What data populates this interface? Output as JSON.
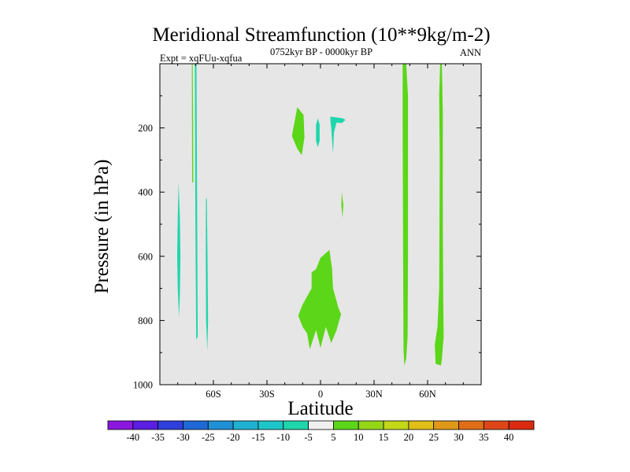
{
  "chart_data": {
    "type": "contour",
    "title": "Meridional Streamfunction (10**9kg/m-2)",
    "left_label": "Expt = xqFUu-xqfua",
    "center_label": "0752kyr BP - 0000kyr BP",
    "right_label": "ANN",
    "xlabel": "Latitude",
    "ylabel": "Pressure (in hPa)",
    "xlim": [
      -90,
      90
    ],
    "ylim": [
      1000,
      0
    ],
    "y_axis_inverted": true,
    "x_ticks": [
      {
        "value": -60,
        "label": "60S"
      },
      {
        "value": -30,
        "label": "30S"
      },
      {
        "value": 0,
        "label": "0"
      },
      {
        "value": 30,
        "label": "30N"
      },
      {
        "value": 60,
        "label": "60N"
      }
    ],
    "y_ticks": [
      {
        "value": 200,
        "label": "200"
      },
      {
        "value": 400,
        "label": "400"
      },
      {
        "value": 600,
        "label": "600"
      },
      {
        "value": 800,
        "label": "800"
      },
      {
        "value": 1000,
        "label": "1000"
      }
    ],
    "plot_background": "#e6e6e6",
    "colorbar": {
      "labels": [
        "-40",
        "-35",
        "-30",
        "-25",
        "-20",
        "-15",
        "-10",
        "-5",
        "5",
        "10",
        "15",
        "20",
        "25",
        "30",
        "35",
        "40"
      ],
      "colors": [
        "#8c17de",
        "#5a1fe0",
        "#2f3fdc",
        "#1f69d6",
        "#1f90d4",
        "#1fb0d2",
        "#1fc6c8",
        "#1fd6ac",
        "#f0f0f0",
        "#5cd618",
        "#96d618",
        "#c2d818",
        "#e0bf18",
        "#e09818",
        "#e06e18",
        "#de4618",
        "#da2a10"
      ]
    },
    "contour_regions": [
      {
        "name": "sh-cyan-band-a",
        "color": "#1fd6ac",
        "points": [
          [
            -79.5,
            370
          ],
          [
            -78.8,
            480
          ],
          [
            -78.5,
            600
          ],
          [
            -78.8,
            720
          ],
          [
            -79.3,
            790
          ],
          [
            -80,
            700
          ],
          [
            -80.3,
            600
          ],
          [
            -80,
            480
          ]
        ]
      },
      {
        "name": "sh-cyan-band-b",
        "color": "#1fd6ac",
        "points": [
          [
            -69.5,
            0
          ],
          [
            -69.3,
            200
          ],
          [
            -69.1,
            500
          ],
          [
            -68.8,
            850
          ],
          [
            -69.6,
            860
          ],
          [
            -70.1,
            500
          ],
          [
            -70.3,
            200
          ],
          [
            -70.4,
            0
          ]
        ]
      },
      {
        "name": "sh-cyan-band-c",
        "color": "#1fd6ac",
        "points": [
          [
            -63.7,
            420
          ],
          [
            -63.3,
            600
          ],
          [
            -63,
            800
          ],
          [
            -63.4,
            895
          ],
          [
            -64.1,
            800
          ],
          [
            -64.3,
            600
          ],
          [
            -64.2,
            420
          ]
        ]
      },
      {
        "name": "sh-green-sliver",
        "color": "#5cd618",
        "points": [
          [
            -71.6,
            0
          ],
          [
            -71.4,
            180
          ],
          [
            -71.3,
            370
          ],
          [
            -71.9,
            370
          ],
          [
            -72,
            180
          ],
          [
            -72.1,
            0
          ]
        ]
      },
      {
        "name": "upper-green-blob",
        "color": "#5cd618",
        "points": [
          [
            -13,
            135
          ],
          [
            -9.5,
            160
          ],
          [
            -9,
            230
          ],
          [
            -10.5,
            285
          ],
          [
            -13,
            265
          ],
          [
            -16,
            225
          ]
        ]
      },
      {
        "name": "upper-cyan-a",
        "color": "#1fd6ac",
        "points": [
          [
            -1.5,
            170
          ],
          [
            -0.5,
            190
          ],
          [
            -0.5,
            240
          ],
          [
            -1.5,
            260
          ],
          [
            -2.5,
            240
          ],
          [
            -2.5,
            190
          ]
        ]
      },
      {
        "name": "upper-cyan-b",
        "color": "#1fd6ac",
        "points": [
          [
            5.5,
            165
          ],
          [
            12.5,
            170
          ],
          [
            14,
            175
          ],
          [
            12,
            185
          ],
          [
            9,
            183
          ],
          [
            7.5,
            215
          ],
          [
            7,
            280
          ],
          [
            6,
            200
          ],
          [
            5.5,
            175
          ]
        ]
      },
      {
        "name": "small-green-mark",
        "color": "#5cd618",
        "points": [
          [
            11.9,
            400
          ],
          [
            12.8,
            440
          ],
          [
            12.3,
            480
          ],
          [
            11.7,
            440
          ]
        ]
      },
      {
        "name": "lower-green-blob",
        "color": "#5cd618",
        "points": [
          [
            5,
            580
          ],
          [
            6.5,
            640
          ],
          [
            7,
            700
          ],
          [
            10,
            760
          ],
          [
            11.5,
            780
          ],
          [
            9,
            830
          ],
          [
            6,
            870
          ],
          [
            3,
            820
          ],
          [
            0,
            885
          ],
          [
            -2.5,
            830
          ],
          [
            -6,
            890
          ],
          [
            -7.5,
            840
          ],
          [
            -10,
            820
          ],
          [
            -12.5,
            785
          ],
          [
            -10,
            750
          ],
          [
            -5,
            700
          ],
          [
            -5,
            650
          ],
          [
            -2.5,
            640
          ],
          [
            0,
            605
          ]
        ]
      },
      {
        "name": "nh-green-band-a",
        "color": "#5cd618",
        "points": [
          [
            46,
            0
          ],
          [
            48,
            0
          ],
          [
            49,
            100
          ],
          [
            49,
            600
          ],
          [
            48.8,
            850
          ],
          [
            48,
            920
          ],
          [
            47,
            940
          ],
          [
            46.5,
            890
          ],
          [
            46.3,
            600
          ],
          [
            46,
            200
          ]
        ]
      },
      {
        "name": "nh-green-band-b",
        "color": "#5cd618",
        "points": [
          [
            67,
            0
          ],
          [
            68,
            0
          ],
          [
            68.5,
            150
          ],
          [
            68.5,
            500
          ],
          [
            68.8,
            750
          ],
          [
            69,
            850
          ],
          [
            68,
            920
          ],
          [
            67.5,
            940
          ],
          [
            64.5,
            935
          ],
          [
            64,
            875
          ],
          [
            65.5,
            820
          ],
          [
            66.5,
            700
          ],
          [
            66.8,
            300
          ],
          [
            66.5,
            100
          ]
        ]
      }
    ]
  }
}
